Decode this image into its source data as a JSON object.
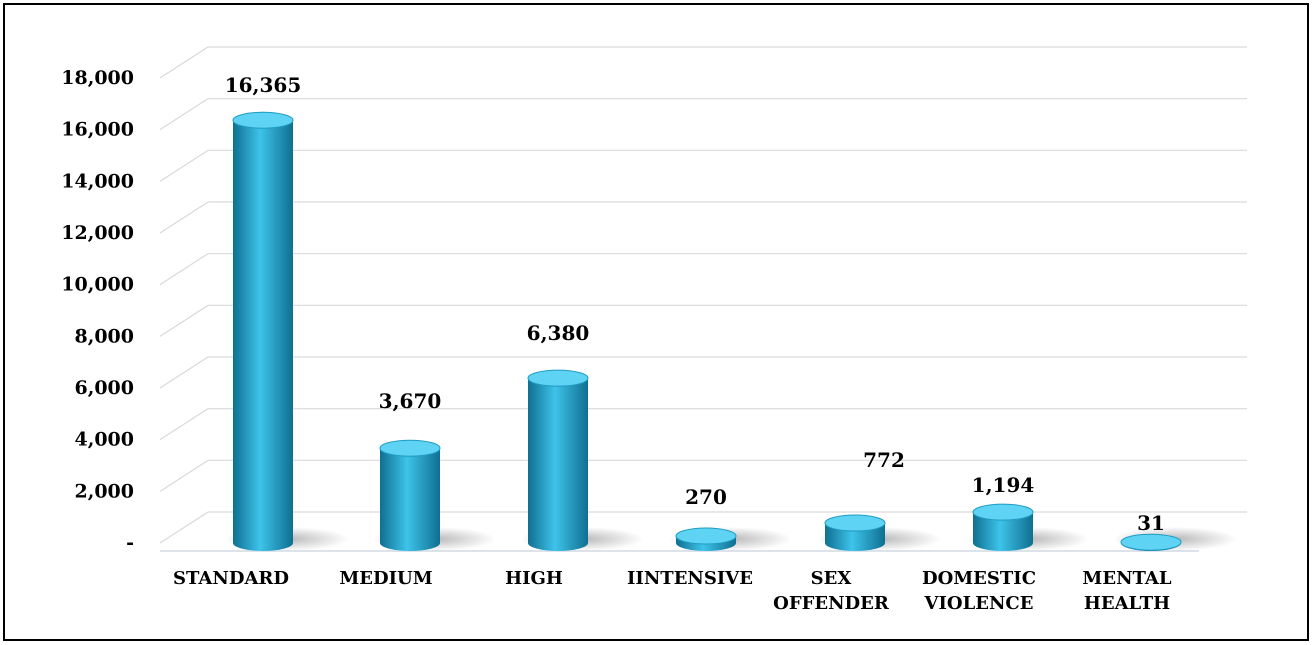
{
  "chart_data": {
    "type": "bar",
    "categories": [
      [
        "STANDARD"
      ],
      [
        "MEDIUM"
      ],
      [
        "HIGH"
      ],
      [
        "IINTENSIVE"
      ],
      [
        "SEX",
        "OFFENDER"
      ],
      [
        "DOMESTIC",
        "VIOLENCE"
      ],
      [
        "MENTAL",
        "HEALTH"
      ]
    ],
    "values": [
      16365,
      3670,
      6380,
      270,
      772,
      1194,
      31
    ],
    "data_labels": [
      "16,365",
      "3,670",
      "6,380",
      "270",
      "772",
      "1,194",
      "31"
    ],
    "ylim": [
      0,
      18000
    ],
    "yticks": [
      0,
      2000,
      4000,
      6000,
      8000,
      10000,
      12000,
      14000,
      16000,
      18000
    ],
    "ytick_labels": [
      "-",
      "2,000",
      "4,000",
      "6,000",
      "8,000",
      "10,000",
      "12,000",
      "14,000",
      "16,000",
      "18,000"
    ],
    "title": "",
    "xlabel": "",
    "ylabel": "",
    "grid": true,
    "bar_style": "3d-cylinder",
    "colors": {
      "bar_light": "#3ec3ea",
      "bar_mid": "#1f9cc2",
      "bar_dark": "#0f6f91",
      "bar_top": "#5fd3f3",
      "grid": "#d9d9d9",
      "axis": "#dde3ea"
    }
  }
}
